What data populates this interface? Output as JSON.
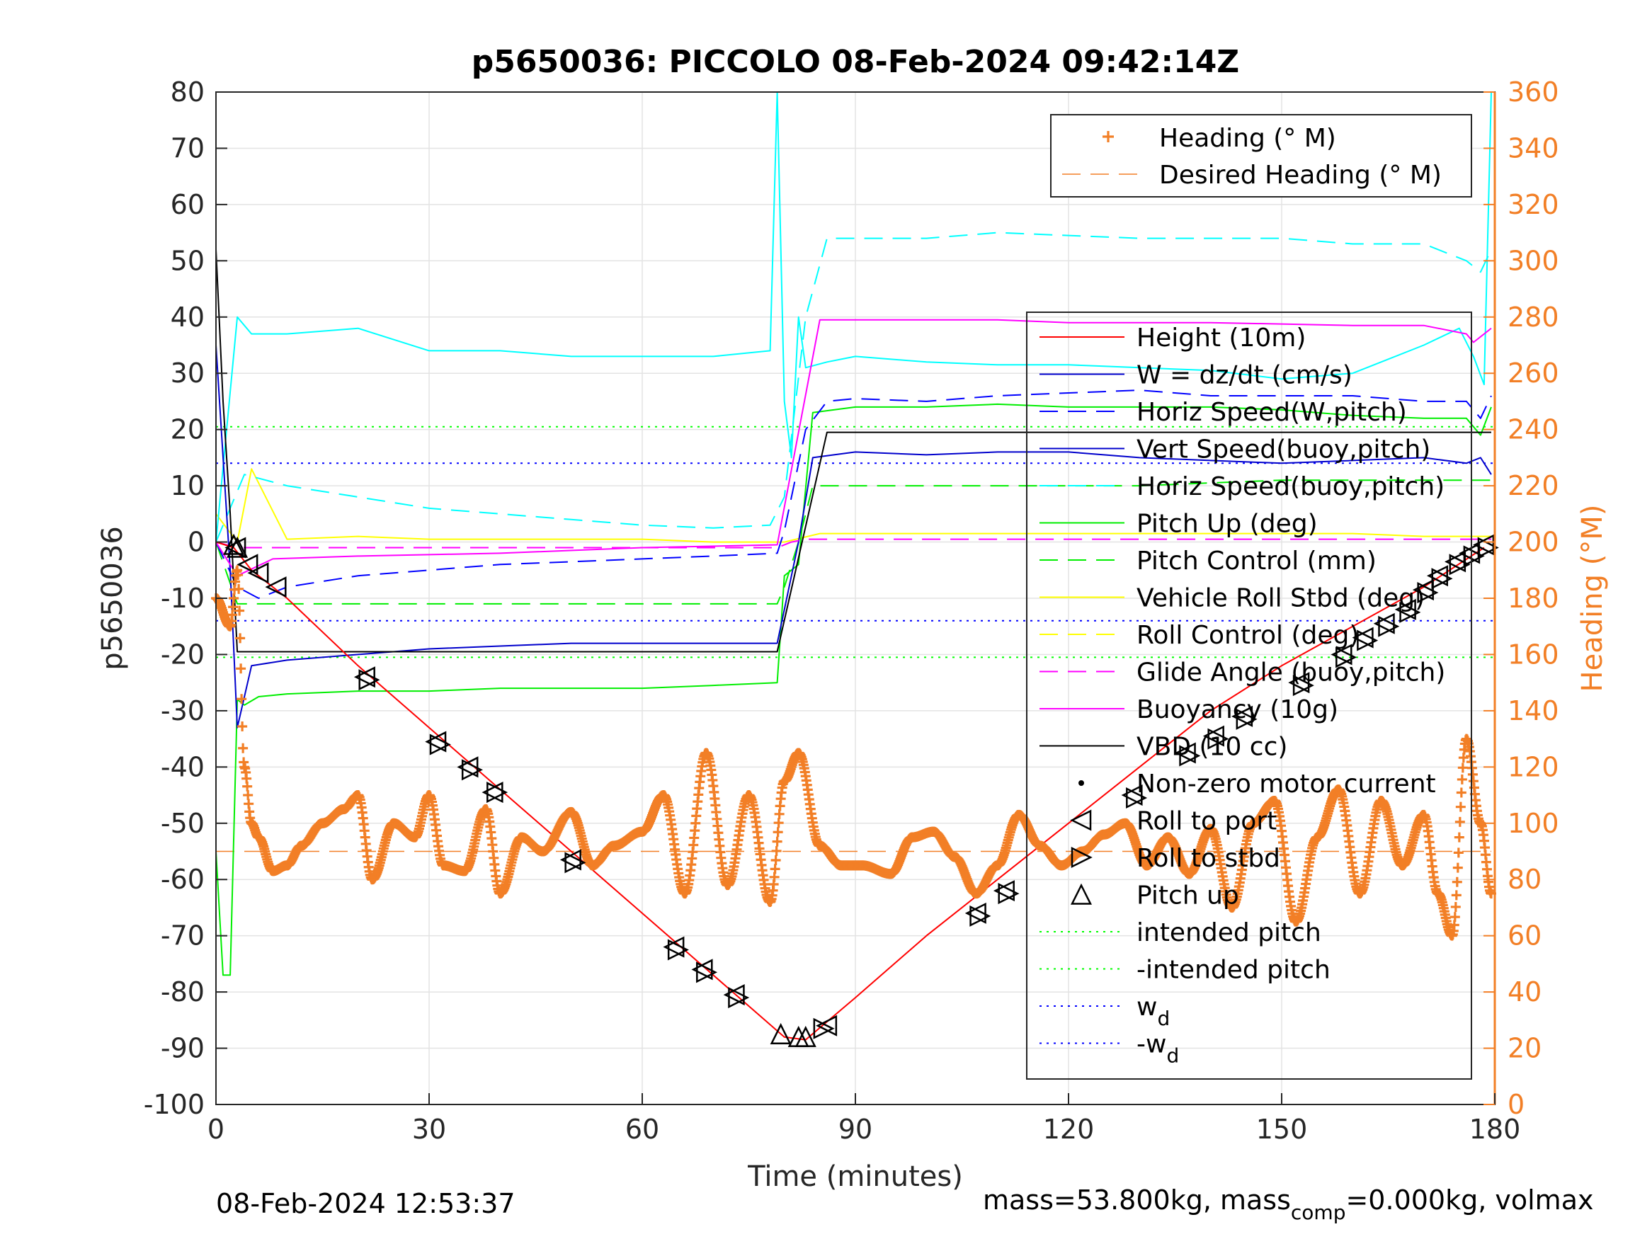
{
  "chart_data": {
    "type": "line",
    "title": "p5650036: PICCOLO 08-Feb-2024 09:42:14Z",
    "xlabel": "Time (minutes)",
    "ylabel": "p5650036",
    "ylabel_right": "Heading (°M)",
    "xlim": [
      0,
      180
    ],
    "ylim": [
      -100,
      80
    ],
    "ylim_right": [
      0,
      360
    ],
    "x_ticks": [
      "0",
      "30",
      "60",
      "90",
      "120",
      "150",
      "180"
    ],
    "y_ticks": [
      "-100",
      "-90",
      "-80",
      "-70",
      "-60",
      "-50",
      "-40",
      "-30",
      "-20",
      "-10",
      "0",
      "10",
      "20",
      "30",
      "40",
      "50",
      "60",
      "70",
      "80"
    ],
    "y_ticks_right": [
      "0",
      "20",
      "40",
      "60",
      "80",
      "100",
      "120",
      "140",
      "160",
      "180",
      "200",
      "220",
      "240",
      "260",
      "280",
      "300",
      "320",
      "340",
      "360"
    ],
    "grid": true,
    "colors": {
      "height": "#ff0000",
      "w": "#0000cc",
      "horiz_w": "#0000ff",
      "vert_buoy": "#00ffff",
      "pitch": "#00ee00",
      "roll": "#ffff00",
      "glide": "#ff00ff",
      "vbd": "#000000",
      "heading": "#f27f26",
      "intended": "#00ff00",
      "wd": "#0000ff"
    },
    "legend_heading": {
      "position": "top-right",
      "entries": [
        "Heading (° M)",
        "Desired Heading (° M)"
      ]
    },
    "legend_main": {
      "position": "right",
      "entries": [
        "Height (10m)",
        "W = dz/dt (cm/s)",
        "Horiz Speed(W,pitch)",
        "Vert Speed(buoy,pitch)",
        "Horiz Speed(buoy,pitch)",
        "Pitch Up (deg)",
        "Pitch Control (mm)",
        "Vehicle Roll Stbd (deg)",
        "Roll Control (deg)",
        "Glide Angle (buoy,pitch)",
        "Buoyancy (10g)",
        "VBD (10 cc)",
        "Non-zero motor current",
        "Roll to port",
        "Roll to stbd",
        "Pitch up",
        "intended pitch",
        "-intended pitch",
        "w",
        "-w"
      ],
      "wd_subscript": "d"
    },
    "series": [
      {
        "key": "height",
        "x": [
          0,
          2.5,
          5,
          10,
          20,
          30,
          40,
          50,
          60,
          70,
          80,
          83,
          90,
          100,
          110,
          120,
          130,
          140,
          150,
          160,
          170,
          178.5
        ],
        "values": [
          0,
          -1,
          -5,
          -10,
          -22,
          -33,
          -44,
          -55,
          -66,
          -77,
          -88,
          -88.5,
          -81,
          -70,
          -60,
          -50,
          -40,
          -30,
          -22,
          -15,
          -8,
          -1
        ]
      },
      {
        "key": "w",
        "x": [
          0,
          2,
          3,
          5,
          10,
          20,
          30,
          40,
          50,
          60,
          70,
          79,
          80,
          82,
          84,
          90,
          100,
          110,
          120,
          130,
          140,
          150,
          160,
          170,
          176,
          178,
          179.5
        ],
        "values": [
          35,
          -5,
          -33,
          -22,
          -21,
          -20,
          -19,
          -18.5,
          -18,
          -18,
          -18,
          -18,
          -12,
          0,
          15,
          16,
          15.5,
          16,
          16,
          15,
          14.5,
          14,
          14.5,
          15,
          14,
          15,
          12
        ]
      },
      {
        "key": "horiz_w",
        "x": [
          0,
          3,
          6,
          10,
          20,
          30,
          40,
          50,
          60,
          70,
          79,
          80,
          83,
          86,
          90,
          100,
          110,
          120,
          130,
          140,
          150,
          160,
          170,
          176,
          178,
          179.5
        ],
        "values": [
          0,
          -8,
          -10,
          -8,
          -6,
          -5,
          -4,
          -3.5,
          -3,
          -2.5,
          -2,
          2,
          20,
          25,
          25.5,
          25,
          26,
          26.5,
          27,
          26,
          26,
          26,
          25,
          25,
          22,
          26
        ]
      },
      {
        "key": "vert_buoy",
        "x": [
          0,
          3,
          5,
          10,
          20,
          30,
          40,
          50,
          60,
          70,
          78,
          79,
          80,
          81,
          82,
          83,
          86,
          90,
          100,
          110,
          120,
          130,
          140,
          150,
          160,
          170,
          175,
          177,
          178.5,
          179.5
        ],
        "values": [
          0,
          40,
          37,
          37,
          38,
          34,
          34,
          33,
          33,
          33,
          34,
          80,
          25,
          15,
          40,
          31,
          32,
          33,
          32,
          31.5,
          31.5,
          31,
          30.5,
          29,
          30,
          35,
          38,
          33,
          28,
          80
        ]
      },
      {
        "key": "horiz_buoy",
        "x": [
          0,
          4,
          10,
          20,
          30,
          40,
          50,
          60,
          70,
          78,
          80,
          83,
          86,
          90,
          100,
          110,
          120,
          130,
          140,
          150,
          160,
          170,
          176,
          178,
          179.5
        ],
        "values": [
          0,
          12,
          10,
          8,
          6,
          5,
          4,
          3,
          2.5,
          3,
          8,
          40,
          54,
          54,
          54,
          55,
          54.5,
          54,
          54,
          54,
          53,
          53,
          50,
          48,
          52
        ]
      },
      {
        "key": "pitch",
        "x": [
          0,
          1,
          2,
          3,
          4,
          6,
          10,
          20,
          30,
          40,
          50,
          60,
          70,
          79,
          80,
          82,
          84,
          90,
          100,
          110,
          120,
          130,
          140,
          150,
          160,
          170,
          176,
          178,
          179.5
        ],
        "values": [
          -55,
          -77,
          -77,
          -28,
          -29,
          -27.5,
          -27,
          -26.5,
          -26.5,
          -26,
          -26,
          -26,
          -25.5,
          -25,
          -6,
          -4,
          23,
          24,
          24,
          24.5,
          24,
          24,
          24,
          23.5,
          22.5,
          22,
          22,
          19,
          24
        ]
      },
      {
        "key": "pitch_control",
        "x": [
          0,
          3,
          10,
          20,
          30,
          40,
          50,
          60,
          70,
          79,
          80,
          82,
          84,
          90,
          100,
          110,
          120,
          130,
          140,
          150,
          160,
          170,
          179.5
        ],
        "values": [
          0,
          -11,
          -11,
          -11,
          -11,
          -11,
          -11,
          -11,
          -11,
          -11,
          -8,
          0,
          10,
          10,
          10,
          10,
          10,
          10,
          10.5,
          11,
          11,
          11,
          11
        ]
      },
      {
        "key": "roll",
        "x": [
          0,
          3,
          5,
          10,
          20,
          30,
          40,
          50,
          60,
          70,
          80,
          85,
          90,
          100,
          110,
          120,
          130,
          140,
          150,
          160,
          170,
          179.5
        ],
        "values": [
          5,
          0,
          13,
          0.5,
          1,
          0.5,
          0.5,
          0.5,
          0.5,
          0,
          0,
          1.5,
          1.5,
          1.5,
          1.5,
          1.5,
          1.5,
          1.5,
          1.5,
          1.5,
          1,
          1
        ]
      },
      {
        "key": "glide",
        "x": [
          0,
          3,
          10,
          79,
          81,
          83,
          179.5
        ],
        "values": [
          0,
          -1,
          -1,
          -1,
          0,
          0.5,
          0.5
        ]
      },
      {
        "key": "buoyancy",
        "x": [
          0,
          3,
          8,
          20,
          40,
          60,
          79,
          85,
          90,
          100,
          110,
          120,
          140,
          160,
          170,
          176,
          177,
          179.5
        ],
        "values": [
          0,
          -6,
          -3,
          -2.5,
          -2,
          -1,
          -0.5,
          39.5,
          39.5,
          39.5,
          39.5,
          39,
          39,
          38.5,
          38.5,
          37,
          35.5,
          38
        ]
      },
      {
        "key": "vbd",
        "x": [
          0,
          1,
          2,
          3,
          10,
          30,
          50,
          70,
          79,
          86,
          100,
          120,
          140,
          160,
          179.5
        ],
        "values": [
          52,
          25,
          5,
          -19.5,
          -19.5,
          -19.5,
          -19.5,
          -19.5,
          -19.5,
          19.5,
          19.5,
          19.5,
          19.5,
          19.5,
          19.5
        ]
      },
      {
        "key": "heading",
        "axis": "right",
        "x": [
          0,
          2,
          3,
          4,
          5,
          6,
          8,
          10,
          12,
          15,
          18,
          20,
          22,
          25,
          28,
          30,
          32,
          35,
          38,
          40,
          43,
          46,
          50,
          53,
          56,
          60,
          63,
          66,
          69,
          72,
          75,
          78,
          80,
          82,
          85,
          88,
          91,
          95,
          98,
          101,
          104,
          107,
          110,
          113,
          116,
          119,
          122,
          125,
          128,
          131,
          134,
          137,
          140,
          143,
          146,
          149,
          152,
          155,
          158,
          161,
          164,
          167,
          170,
          172,
          174,
          176,
          178,
          179.5
        ],
        "values": [
          180,
          170,
          190,
          120,
          100,
          95,
          83,
          85,
          92,
          100,
          105,
          110,
          80,
          100,
          95,
          110,
          85,
          83,
          105,
          75,
          95,
          90,
          104,
          85,
          92,
          97,
          110,
          75,
          125,
          78,
          110,
          72,
          115,
          125,
          92,
          85,
          85,
          82,
          95,
          97,
          88,
          75,
          85,
          103,
          92,
          85,
          90,
          96,
          100,
          85,
          95,
          82,
          98,
          70,
          100,
          108,
          65,
          95,
          112,
          75,
          108,
          85,
          103,
          75,
          60,
          130,
          100,
          75
        ]
      },
      {
        "key": "desired_heading",
        "axis": "right",
        "x": [
          0,
          179.5
        ],
        "values": [
          90,
          90
        ]
      },
      {
        "key": "intended_pos",
        "x": [
          0,
          180
        ],
        "values": [
          20.5,
          20.5
        ]
      },
      {
        "key": "intended_neg",
        "x": [
          0,
          180
        ],
        "values": [
          -20.5,
          -20.5
        ]
      },
      {
        "key": "wd_pos",
        "x": [
          0,
          180
        ],
        "values": [
          14,
          14
        ]
      },
      {
        "key": "wd_neg",
        "x": [
          0,
          180
        ],
        "values": [
          -14,
          -14
        ]
      }
    ],
    "markers": {
      "roll_port": [
        [
          2.8,
          -1
        ],
        [
          4.5,
          -4
        ],
        [
          6,
          -5.5
        ],
        [
          8.5,
          -8
        ],
        [
          21,
          -24
        ],
        [
          31,
          -35.5
        ],
        [
          35.5,
          -40
        ],
        [
          39,
          -44.5
        ],
        [
          50,
          -56.5
        ],
        [
          64.5,
          -72
        ],
        [
          68.5,
          -76
        ],
        [
          73,
          -80.5
        ],
        [
          86,
          -86
        ],
        [
          107,
          -66
        ],
        [
          111,
          -62
        ],
        [
          129,
          -45
        ],
        [
          136.5,
          -37.5
        ],
        [
          140.5,
          -34.5
        ],
        [
          144.5,
          -31
        ],
        [
          152.5,
          -25
        ],
        [
          158.5,
          -20
        ],
        [
          161.5,
          -17
        ],
        [
          164.5,
          -14.5
        ],
        [
          167.5,
          -12
        ],
        [
          170,
          -8.5
        ],
        [
          172,
          -6
        ],
        [
          174.5,
          -3.5
        ],
        [
          176.5,
          -2
        ],
        [
          178.5,
          -0.5
        ]
      ],
      "roll_stbd": [
        [
          21.5,
          -24.5
        ],
        [
          31.5,
          -36
        ],
        [
          36,
          -40.5
        ],
        [
          39.5,
          -44.5
        ],
        [
          50.5,
          -57
        ],
        [
          65,
          -72.5
        ],
        [
          69,
          -76.5
        ],
        [
          73.5,
          -81
        ],
        [
          85.5,
          -86.5
        ],
        [
          107.5,
          -66.5
        ],
        [
          111.5,
          -62.5
        ],
        [
          129.5,
          -45.5
        ],
        [
          137,
          -38
        ],
        [
          141,
          -35
        ],
        [
          145,
          -31.5
        ],
        [
          153,
          -25.5
        ],
        [
          159,
          -20.5
        ],
        [
          162,
          -17.5
        ],
        [
          165,
          -15
        ],
        [
          168,
          -12.5
        ],
        [
          170.5,
          -9
        ],
        [
          172.5,
          -6.5
        ],
        [
          175,
          -4
        ],
        [
          177,
          -2.5
        ],
        [
          179,
          -1
        ]
      ],
      "pitch_up": [
        [
          2.5,
          -0.5
        ],
        [
          3,
          -1
        ],
        [
          79.5,
          -87.5
        ],
        [
          82,
          -88
        ],
        [
          83,
          -88
        ]
      ]
    }
  },
  "footer": {
    "date": "08-Feb-2024 12:53:37",
    "mass_text": "mass=53.800kg, mass",
    "mass_sub": "comp",
    "mass_rest": "=0.000kg, volmax"
  }
}
